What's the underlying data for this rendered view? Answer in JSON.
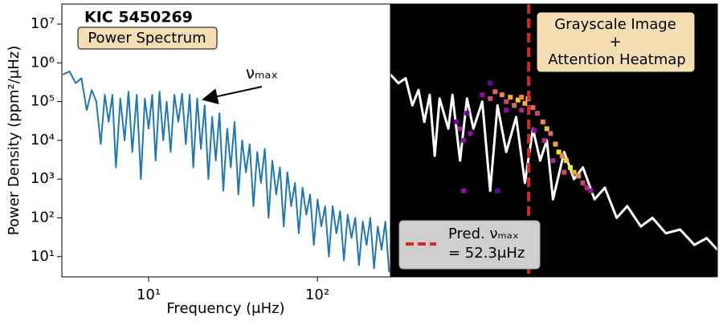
{
  "chart_data": [
    {
      "type": "line",
      "title": "KIC 5450269",
      "subtitle": "Power Spectrum",
      "annotation": "νₘₐₓ",
      "xlabel": "Frequency (μHz)",
      "ylabel": "Power Density (ppm²/μHz)",
      "log_x": true,
      "log_y": true,
      "xlim": [
        3.06,
        271
      ],
      "ylim": [
        3,
        33000000
      ],
      "xticks": [
        {
          "value": 10,
          "label": "10¹"
        },
        {
          "value": 100,
          "label": "10²"
        }
      ],
      "yticks": [
        {
          "value": 10,
          "label": "10¹"
        },
        {
          "value": 100,
          "label": "10²"
        },
        {
          "value": 1000,
          "label": "10³"
        },
        {
          "value": 10000,
          "label": "10⁴"
        },
        {
          "value": 100000,
          "label": "10⁵"
        },
        {
          "value": 1000000,
          "label": "10⁶"
        },
        {
          "value": 10000000,
          "label": "10⁷"
        }
      ],
      "color": "#1f77b4",
      "x": [
        3.1,
        3.4,
        3.7,
        4.0,
        4.3,
        4.6,
        4.9,
        5.2,
        5.5,
        5.8,
        6.1,
        6.4,
        6.8,
        7.2,
        7.6,
        8.0,
        8.5,
        9,
        9.5,
        10,
        10.5,
        11,
        11.6,
        12.2,
        12.8,
        13.5,
        14.2,
        15,
        15.8,
        16.6,
        17.5,
        18.4,
        19.4,
        20.4,
        21.5,
        22.6,
        23.8,
        25,
        26.3,
        27.7,
        29.2,
        30.7,
        32.3,
        34,
        35.8,
        37.7,
        39.7,
        41.8,
        44,
        46.3,
        48.8,
        51.4,
        54.1,
        57,
        60,
        63.2,
        66.5,
        70,
        73.7,
        77.6,
        81.7,
        86,
        90.5,
        95.3,
        100.3,
        105.6,
        111.2,
        117,
        123.2,
        129.7,
        136.5,
        143.7,
        151.3,
        159.3,
        167.7,
        176.5,
        185.8,
        195.6,
        205.9,
        216.8,
        228.2,
        240.2,
        252.9,
        266.2
      ],
      "values": [
        500000,
        600000,
        300000,
        400000,
        60000,
        200000,
        100000,
        8000,
        150000,
        30000,
        150000,
        2000,
        120000,
        10000,
        180000,
        5000,
        150000,
        1000,
        120000,
        20000,
        150000,
        3000,
        180000,
        10000,
        100000,
        5000,
        150000,
        30000,
        160000,
        8000,
        150000,
        2000,
        120000,
        6000,
        80000,
        1000,
        40000,
        3000,
        50000,
        500,
        20000,
        2000,
        30000,
        400,
        10000,
        1500,
        8000,
        200,
        5000,
        800,
        6000,
        100,
        3000,
        400,
        2000,
        60,
        1500,
        200,
        800,
        40,
        600,
        120,
        400,
        20,
        300,
        60,
        200,
        10,
        200,
        40,
        150,
        8,
        120,
        30,
        100,
        6,
        80,
        20,
        100,
        5,
        60,
        15,
        80,
        4
      ]
    },
    {
      "type": "heatmap",
      "title_lines": [
        "Grayscale Image",
        "+",
        "Attention Heatmap"
      ],
      "background": "#000000",
      "log_x": true,
      "log_y": true,
      "xlim": [
        10,
        500
      ],
      "ylim": [
        3,
        33000000
      ],
      "trace": {
        "color": "#ffffff",
        "x": [
          10,
          11,
          12,
          13,
          14,
          15,
          16,
          17,
          18,
          20,
          21,
          23,
          25,
          27,
          30,
          33,
          36,
          40,
          45,
          50,
          55,
          60,
          65,
          70,
          80,
          90,
          100,
          115,
          130,
          150,
          170,
          200,
          230,
          270,
          320,
          380,
          440,
          500
        ],
        "values": [
          500000,
          300000,
          400000,
          80000,
          200000,
          30000,
          150000,
          4000,
          120000,
          20000,
          150000,
          3000,
          120000,
          20000,
          100000,
          500,
          80000,
          5000,
          40000,
          800,
          20000,
          3000,
          10000,
          300,
          5000,
          1000,
          2000,
          300,
          600,
          100,
          200,
          60,
          100,
          40,
          50,
          20,
          30,
          15
        ]
      },
      "colormap": [
        "#0d0887",
        "#7e03a8",
        "#cc4778",
        "#f89540",
        "#f0f921"
      ],
      "cells": {
        "x": [
          30,
          33,
          35,
          38,
          40,
          42,
          44,
          46,
          48,
          50,
          52,
          55,
          48,
          40,
          58,
          62,
          65,
          68,
          72,
          75,
          78,
          82,
          86,
          90,
          95,
          100,
          105,
          110,
          23,
          24,
          22,
          25,
          26,
          24,
          36,
          33,
          56,
          63,
          70,
          80
        ],
        "y": [
          150000,
          120000,
          180000,
          150000,
          100000,
          130000,
          80000,
          110000,
          130000,
          90000,
          120000,
          70000,
          60000,
          60000,
          50000,
          30000,
          20000,
          15000,
          8000,
          5000,
          4000,
          3000,
          2000,
          1500,
          1200,
          800,
          600,
          500,
          20000,
          10000,
          30000,
          50000,
          15000,
          500,
          500,
          300000,
          18000,
          10000,
          3000,
          1500
        ],
        "values": [
          0.3,
          0.5,
          0.6,
          0.7,
          0.5,
          0.8,
          0.6,
          0.9,
          0.7,
          0.8,
          0.9,
          0.6,
          0.4,
          0.3,
          0.5,
          0.7,
          0.85,
          0.6,
          0.8,
          0.95,
          0.7,
          0.9,
          1.0,
          0.8,
          0.7,
          0.5,
          0.4,
          0.3,
          0.35,
          0.3,
          0.25,
          0.2,
          0.3,
          0.3,
          0.2,
          0.2,
          0.3,
          0.4,
          0.4,
          0.5
        ]
      },
      "vline": {
        "value": 52.3,
        "color": "#d62728",
        "label_lines": [
          "Pred. νₘₐₓ",
          "= 52.3μHz"
        ]
      }
    }
  ]
}
